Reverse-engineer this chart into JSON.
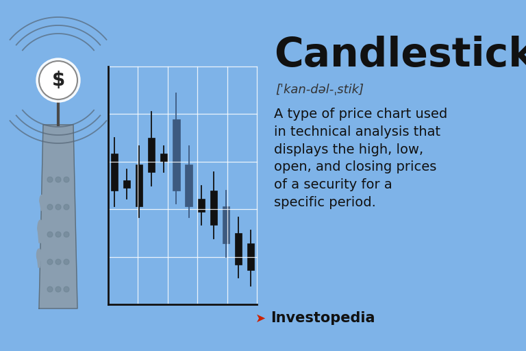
{
  "background_color": "#7EB3E8",
  "title": "Candlestick",
  "pronunciation": "[ˈkan-dəl-ˌstik]",
  "definition": "A type of price chart used\nin technical analysis that\ndisplays the high, low,\nopen, and closing prices\nof a security for a\nspecific period.",
  "investopedia_text": "Investopedia",
  "candlesticks": [
    {
      "x": 0,
      "open": 7.2,
      "close": 5.8,
      "high": 7.8,
      "low": 5.2,
      "dark": true
    },
    {
      "x": 1,
      "open": 6.2,
      "close": 5.9,
      "high": 6.6,
      "low": 5.5,
      "dark": true
    },
    {
      "x": 2,
      "open": 6.8,
      "close": 5.2,
      "high": 7.5,
      "low": 4.8,
      "dark": true
    },
    {
      "x": 3,
      "open": 7.8,
      "close": 6.5,
      "high": 8.8,
      "low": 6.0,
      "dark": true
    },
    {
      "x": 4,
      "open": 7.2,
      "close": 6.9,
      "high": 7.5,
      "low": 6.5,
      "dark": true
    },
    {
      "x": 5,
      "open": 8.5,
      "close": 5.8,
      "high": 9.5,
      "low": 5.3,
      "dark": false
    },
    {
      "x": 6,
      "open": 6.8,
      "close": 5.2,
      "high": 7.5,
      "low": 4.8,
      "dark": false
    },
    {
      "x": 7,
      "open": 5.5,
      "close": 5.0,
      "high": 6.0,
      "low": 4.5,
      "dark": true
    },
    {
      "x": 8,
      "open": 5.8,
      "close": 4.5,
      "high": 6.5,
      "low": 4.0,
      "dark": true
    },
    {
      "x": 9,
      "open": 5.2,
      "close": 3.8,
      "high": 5.8,
      "low": 3.3,
      "dark": false
    },
    {
      "x": 10,
      "open": 4.2,
      "close": 3.0,
      "high": 4.8,
      "low": 2.5,
      "dark": true
    },
    {
      "x": 11,
      "open": 3.8,
      "close": 2.8,
      "high": 4.3,
      "low": 2.2,
      "dark": true
    }
  ]
}
